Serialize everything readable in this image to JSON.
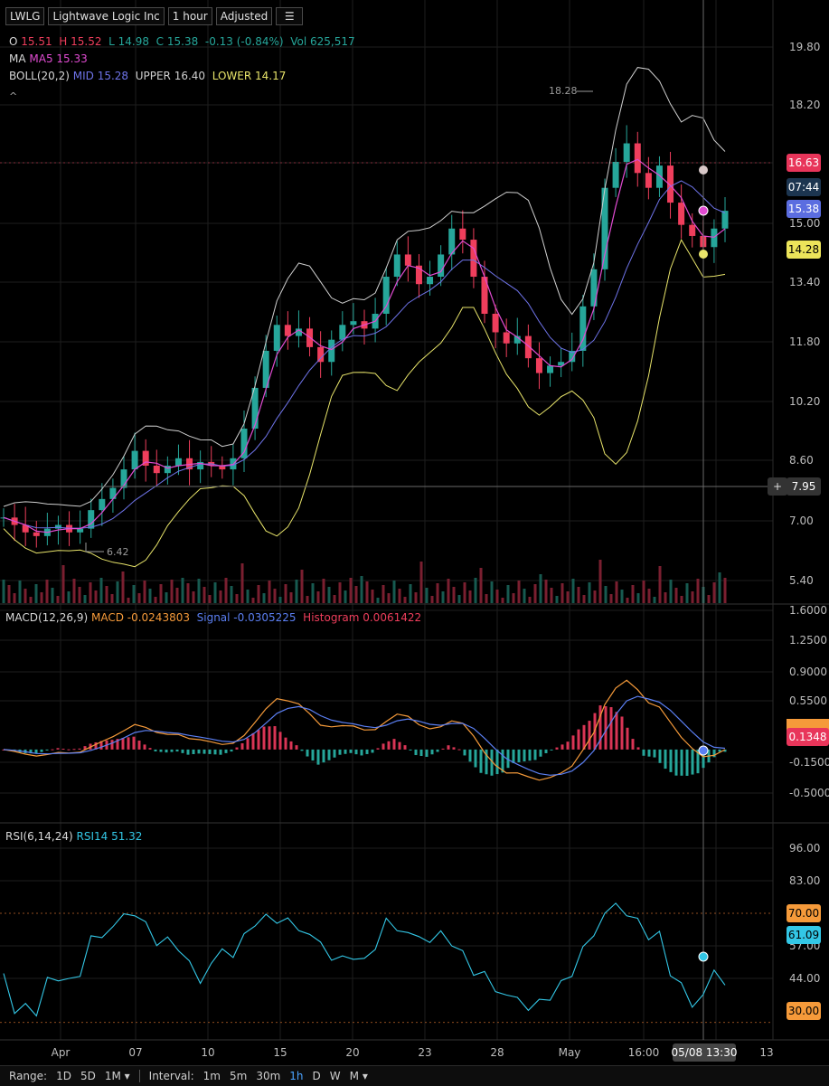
{
  "header": {
    "symbol": "LWLG",
    "name": "Lightwave Logic Inc",
    "interval": "1 hour",
    "adjust": "Adjusted"
  },
  "ohlc": {
    "o_label": "O",
    "o": "15.51",
    "h_label": "H",
    "h": "15.52",
    "l_label": "L",
    "l": "14.98",
    "c_label": "C",
    "c": "15.38",
    "chg": "-0.13 (-0.84%)",
    "vol_label": "Vol",
    "vol": "625,517"
  },
  "ma": {
    "label": "MA",
    "ma5": "MA5 15.33"
  },
  "boll": {
    "label": "BOLL(20,2)",
    "mid": "MID 15.28",
    "upper": "UPPER 16.40",
    "lower": "LOWER 14.17"
  },
  "macd": {
    "label": "MACD(12,26,9)",
    "macd": "MACD -0.0243803",
    "signal": "Signal -0.0305225",
    "hist": "Histogram 0.0061422"
  },
  "rsi": {
    "label": "RSI(6,14,24)",
    "rsi14": "RSI14 51.32"
  },
  "price_axis": [
    "19.80",
    "18.20",
    "16.60",
    "15.00",
    "13.40",
    "11.80",
    "10.20",
    "8.60",
    "7.00",
    "5.40"
  ],
  "price_tags": {
    "last": "16.63",
    "timer": "07:44",
    "mid": "15.38",
    "lower": "14.28",
    "cursor": "7.95",
    "plus": "+"
  },
  "annotations": {
    "high": "18.28",
    "low": "6.42"
  },
  "macd_axis": [
    "1.6000",
    "1.2500",
    "0.9000",
    "0.5500",
    "-0.1500",
    "-0.5000"
  ],
  "macd_tag": "0.1348",
  "rsi_axis": [
    "96.00",
    "83.00",
    "57.00",
    "44.00"
  ],
  "rsi_tags": {
    "upper": "70.00",
    "value": "61.09",
    "lower": "30.00"
  },
  "time_axis": [
    "Apr",
    "07",
    "10",
    "15",
    "20",
    "23",
    "28",
    "May",
    "16:00",
    "13"
  ],
  "time_cursor": "05/08 13:30",
  "bottom": {
    "range_label": "Range:",
    "ranges": [
      "1D",
      "5D",
      "1M ▾"
    ],
    "interval_label": "Interval:",
    "intervals": [
      "1m",
      "5m",
      "30m",
      "1h",
      "D",
      "W",
      "M ▾"
    ],
    "selected_interval": "1h"
  },
  "colors": {
    "up": "#26a69a",
    "down": "#ef3e5c",
    "ma5": "#e04bd1",
    "mid": "#6e73e8",
    "upper": "#cfcfcf",
    "lower": "#e8e46a",
    "macd": "#f59a3a",
    "signal": "#5b7ff2",
    "rsi": "#33c7e6"
  },
  "chart_data": {
    "type": "line",
    "title": "LWLG 1 hour",
    "close": [
      7.1,
      6.9,
      6.7,
      6.6,
      6.8,
      6.9,
      6.7,
      6.8,
      7.3,
      7.6,
      7.9,
      8.4,
      8.9,
      8.5,
      8.3,
      8.5,
      8.7,
      8.4,
      8.6,
      8.5,
      8.4,
      8.7,
      9.5,
      10.6,
      11.6,
      12.3,
      12.0,
      12.2,
      11.7,
      11.3,
      11.9,
      12.3,
      12.4,
      12.2,
      12.6,
      13.6,
      14.2,
      13.9,
      13.4,
      13.6,
      14.2,
      14.9,
      14.6,
      13.6,
      12.6,
      12.1,
      11.8,
      12.0,
      11.4,
      11.0,
      11.2,
      11.3,
      11.6,
      12.8,
      13.8,
      16.0,
      16.7,
      17.2,
      16.4,
      16.0,
      16.6,
      15.6,
      15.0,
      14.7,
      14.4,
      14.9,
      15.38
    ]
  }
}
